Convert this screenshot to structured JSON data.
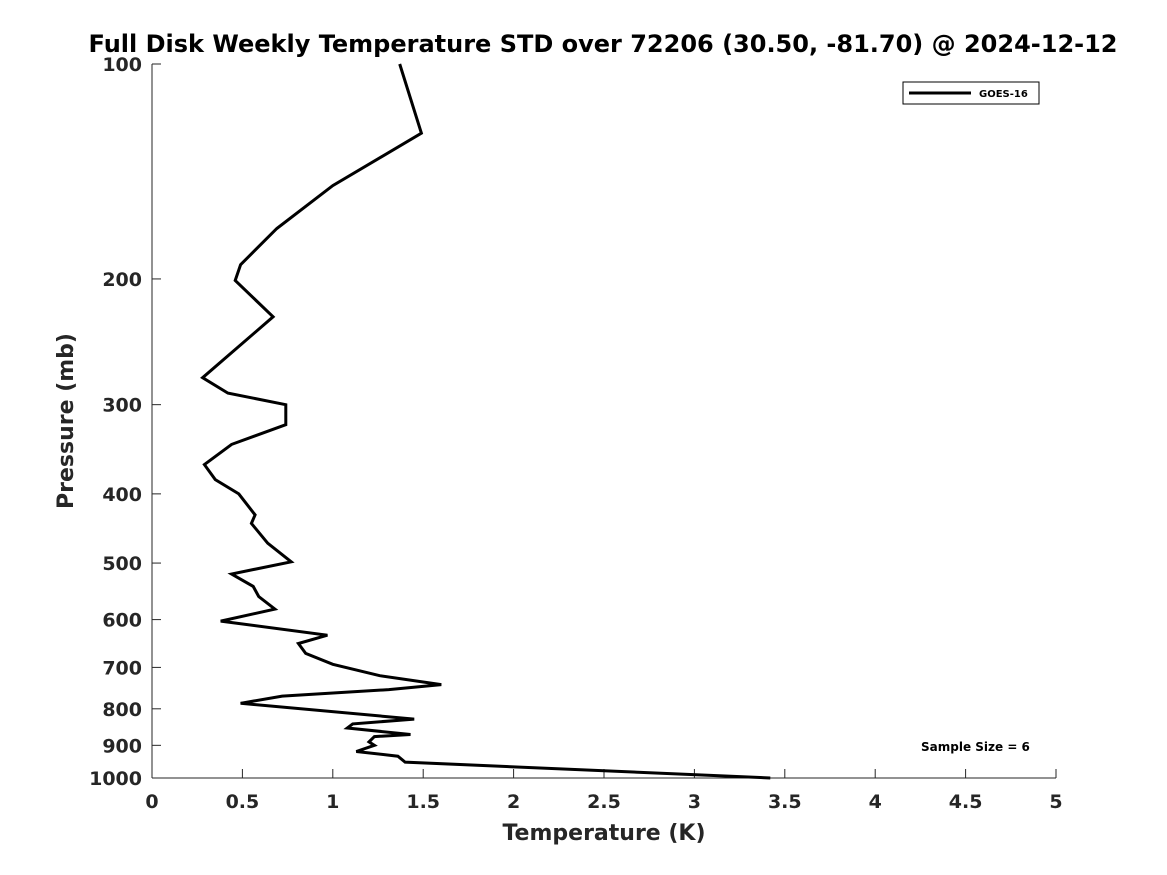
{
  "chart_data": {
    "type": "line",
    "title": "Full Disk Weekly Temperature STD over 72206 (30.50, -81.70) @ 2024-12-12",
    "xlabel": "Temperature (K)",
    "ylabel": "Pressure (mb)",
    "xlim": [
      0,
      5
    ],
    "ylim": [
      100,
      1000
    ],
    "y_scale": "log",
    "y_direction": "reversed",
    "x_ticks": [
      "0",
      "0.5",
      "1",
      "1.5",
      "2",
      "2.5",
      "3",
      "3.5",
      "4",
      "4.5",
      "5"
    ],
    "y_ticks": [
      "100",
      "200",
      "300",
      "400",
      "500",
      "600",
      "700",
      "800",
      "900",
      "1000"
    ],
    "grid": false,
    "legend_position": "top-right",
    "series": [
      {
        "name": "GOES-16",
        "color": "#000000",
        "points": [
          [
            1.37,
            100
          ],
          [
            1.49,
            125
          ],
          [
            1.0,
            148
          ],
          [
            0.69,
            170
          ],
          [
            0.49,
            191
          ],
          [
            0.46,
            201
          ],
          [
            0.67,
            226
          ],
          [
            0.28,
            275
          ],
          [
            0.42,
            289
          ],
          [
            0.74,
            300
          ],
          [
            0.74,
            320
          ],
          [
            0.44,
            341
          ],
          [
            0.29,
            364
          ],
          [
            0.35,
            382
          ],
          [
            0.48,
            400
          ],
          [
            0.57,
            428
          ],
          [
            0.55,
            440
          ],
          [
            0.64,
            469
          ],
          [
            0.77,
            498
          ],
          [
            0.44,
            518
          ],
          [
            0.56,
            539
          ],
          [
            0.59,
            557
          ],
          [
            0.68,
            580
          ],
          [
            0.38,
            603
          ],
          [
            0.97,
            631
          ],
          [
            0.81,
            648
          ],
          [
            0.85,
            669
          ],
          [
            1.0,
            693
          ],
          [
            1.26,
            719
          ],
          [
            1.6,
            740
          ],
          [
            1.31,
            752
          ],
          [
            0.72,
            768
          ],
          [
            0.49,
            786
          ],
          [
            1.45,
            827
          ],
          [
            1.11,
            840
          ],
          [
            1.08,
            851
          ],
          [
            1.43,
            869
          ],
          [
            1.23,
            875
          ],
          [
            1.2,
            890
          ],
          [
            1.23,
            900
          ],
          [
            1.13,
            918
          ],
          [
            1.36,
            932
          ],
          [
            1.4,
            950
          ],
          [
            3.42,
            1000
          ]
        ]
      }
    ],
    "annotation": "Sample Size = 6"
  }
}
